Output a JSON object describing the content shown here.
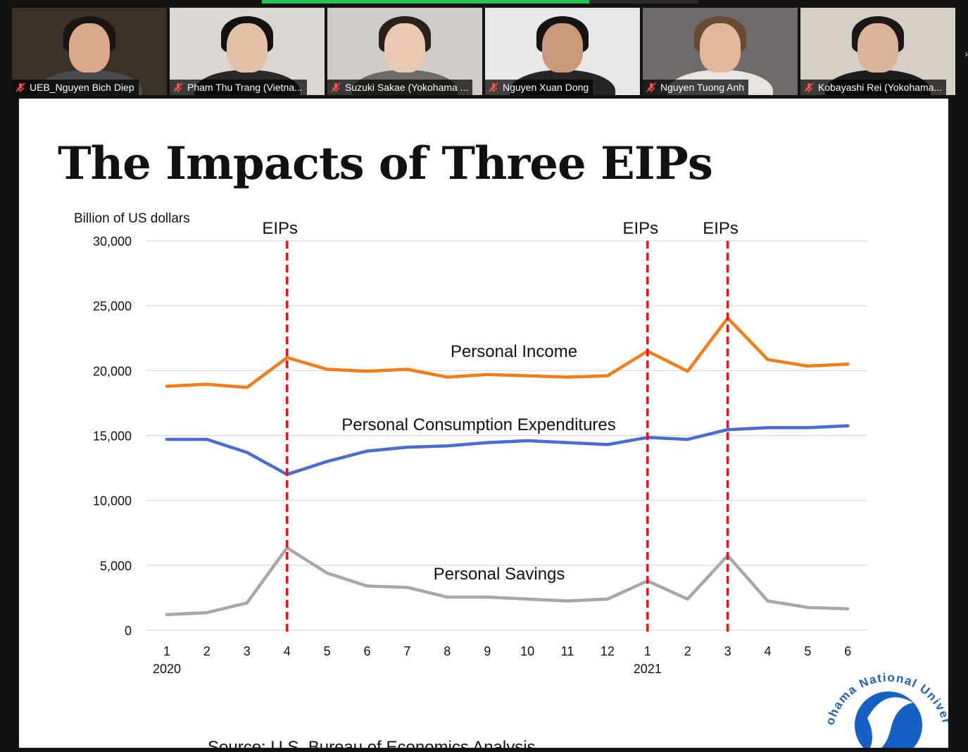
{
  "meeting": {
    "share_progress": 0.75,
    "participants": [
      {
        "name": "UEB_Nguyen Bich Diep",
        "muted": true,
        "bg": "#3a3226",
        "skin": "#d9a98a",
        "hair": "#1c1612",
        "shirt": "#4c4a4a"
      },
      {
        "name": "Pham Thu Trang (Vietna...",
        "muted": true,
        "bg": "#d9d6d4",
        "skin": "#e3bfa8",
        "hair": "#141010",
        "shirt": "#2c2828"
      },
      {
        "name": "Suzuki Sakae (Yokohama ...",
        "muted": true,
        "bg": "#cfccc8",
        "skin": "#e9c9b2",
        "hair": "#2a211c",
        "shirt": "#6e6a66"
      },
      {
        "name": "Nguyen Xuan Dong",
        "muted": true,
        "bg": "#e9e7e6",
        "skin": "#c89a7c",
        "hair": "#141414",
        "shirt": "#262626"
      },
      {
        "name": "Nguyen Tuong Anh",
        "muted": true,
        "bg": "#6e6b6a",
        "skin": "#e2b79b",
        "hair": "#6a4a33",
        "shirt": "#e6e3e1"
      },
      {
        "name": "Kobayashi Rei (Yokohama...",
        "muted": true,
        "bg": "#d6cfc6",
        "skin": "#d9b39a",
        "hair": "#1a1714",
        "shirt": "#1e1e1e"
      }
    ]
  },
  "slide": {
    "title": "The Impacts of Three EIPs",
    "source": "Source: U.S. Bureau of Economics Analysis",
    "logo_text": "Yokohama National University"
  },
  "chart_data": {
    "type": "line",
    "ylabel": "Billion of US dollars",
    "ylim": [
      0,
      30000
    ],
    "yticks": [
      0,
      5000,
      10000,
      15000,
      20000,
      25000,
      30000
    ],
    "ytick_labels": [
      "0",
      "5,000",
      "10,000",
      "15,000",
      "20,000",
      "25,000",
      "30,000"
    ],
    "grid": true,
    "categories": [
      "1",
      "2",
      "3",
      "4",
      "5",
      "6",
      "7",
      "8",
      "9",
      "10",
      "11",
      "12",
      "1",
      "2",
      "3",
      "4",
      "5",
      "6"
    ],
    "year_labels": [
      {
        "index": 0,
        "label": "2020"
      },
      {
        "index": 12,
        "label": "2021"
      }
    ],
    "series": [
      {
        "name": "Personal Income",
        "color": "#f57b16",
        "values": [
          18800,
          18950,
          18700,
          21000,
          20100,
          19950,
          20100,
          19500,
          19700,
          19600,
          19500,
          19600,
          21500,
          19950,
          24050,
          20850,
          20350,
          20500
        ]
      },
      {
        "name": "Personal Consumption Expenditures",
        "color": "#4a6bd1",
        "values": [
          14700,
          14700,
          13700,
          12000,
          13000,
          13800,
          14100,
          14200,
          14450,
          14600,
          14450,
          14300,
          14850,
          14700,
          15450,
          15600,
          15600,
          15750
        ]
      },
      {
        "name": "Personal Savings",
        "color": "#a7a7a7",
        "values": [
          1200,
          1350,
          2100,
          6350,
          4400,
          3400,
          3300,
          2550,
          2550,
          2400,
          2250,
          2400,
          3800,
          2400,
          5750,
          2250,
          1750,
          1650
        ]
      }
    ],
    "eip_markers": [
      {
        "index": 3,
        "label": "EIPs"
      },
      {
        "index": 12,
        "label": "EIPs"
      },
      {
        "index": 14,
        "label": "EIPs"
      }
    ],
    "marker_color": "#e8141c"
  }
}
